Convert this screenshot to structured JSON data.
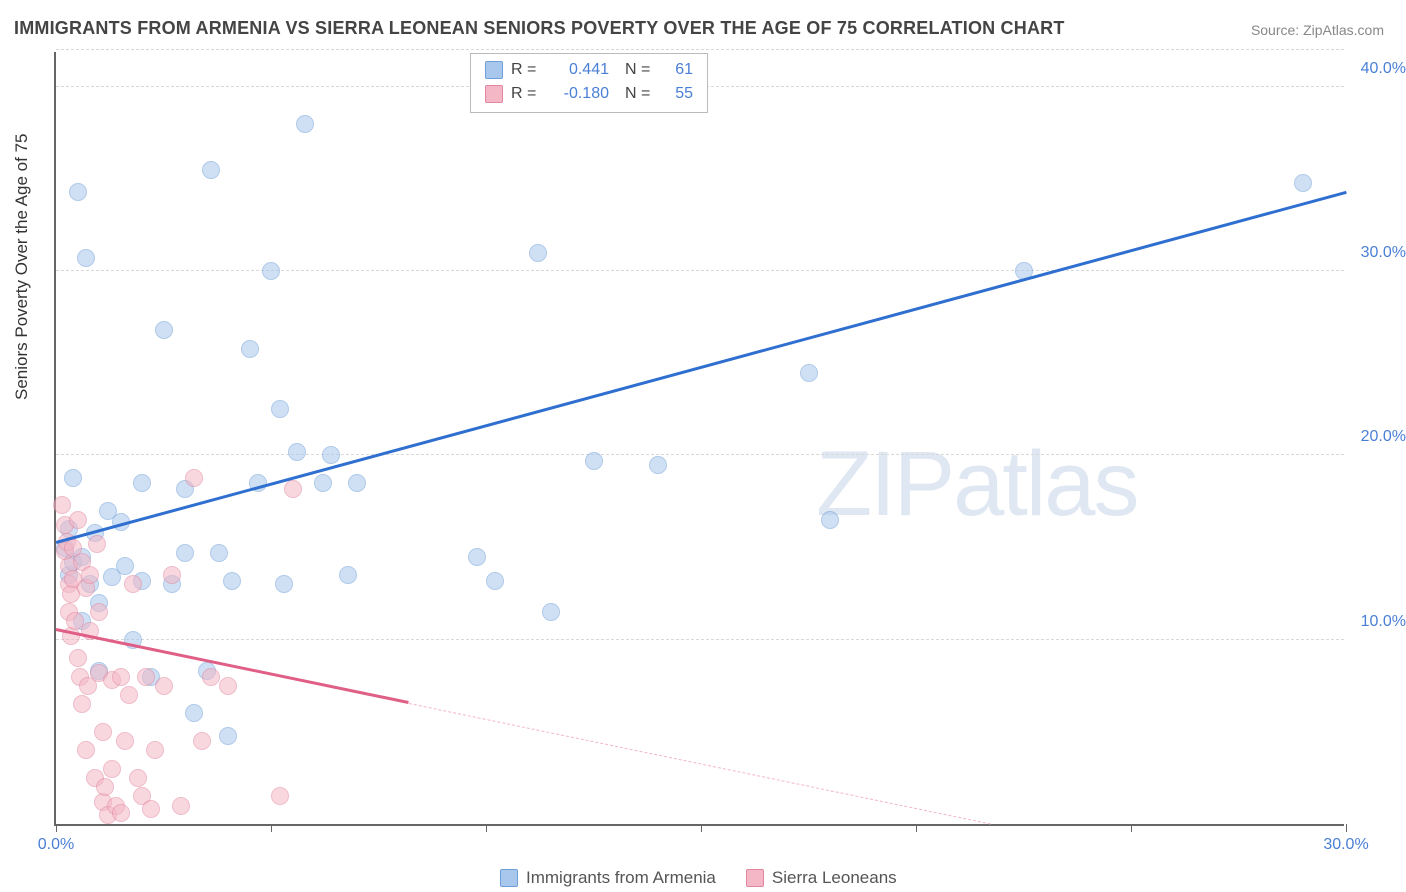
{
  "title": "IMMIGRANTS FROM ARMENIA VS SIERRA LEONEAN SENIORS POVERTY OVER THE AGE OF 75 CORRELATION CHART",
  "source": "Source: ZipAtlas.com",
  "ylabel": "Seniors Poverty Over the Age of 75",
  "watermark": "ZIPatlas",
  "chart": {
    "type": "scatter",
    "xlim": [
      0,
      30
    ],
    "ylim": [
      0,
      42
    ],
    "x_tick_values": [
      0,
      5,
      10,
      15,
      20,
      25,
      30
    ],
    "x_tick_labels": [
      "0.0%",
      "",
      "",
      "",
      "",
      "",
      "30.0%"
    ],
    "y_grid_values": [
      10,
      20,
      30,
      40
    ],
    "y_grid_labels": [
      "10.0%",
      "20.0%",
      "30.0%",
      "40.0%"
    ],
    "background_color": "#ffffff",
    "grid_color": "#d8d8d8",
    "axis_color": "#666666",
    "tick_label_color": "#4a7fd6",
    "marker_radius": 9,
    "marker_opacity": 0.55,
    "series": [
      {
        "name": "Immigrants from Armenia",
        "color_fill": "#a9c7ec",
        "color_stroke": "#6f9fd8",
        "line_color": "#2f6fd0",
        "R": "0.441",
        "N": "61",
        "trend": {
          "x1": 0,
          "y1": 15.2,
          "x2": 30,
          "y2": 34.2,
          "solid_until_x": 30
        },
        "points": [
          [
            0.2,
            15.0
          ],
          [
            0.3,
            16.0
          ],
          [
            0.3,
            13.5
          ],
          [
            0.4,
            14.2
          ],
          [
            0.4,
            18.8
          ],
          [
            0.5,
            34.3
          ],
          [
            0.6,
            11.0
          ],
          [
            0.6,
            14.5
          ],
          [
            0.7,
            30.7
          ],
          [
            0.8,
            13.0
          ],
          [
            0.9,
            15.8
          ],
          [
            1.0,
            12.0
          ],
          [
            1.0,
            8.3
          ],
          [
            1.2,
            17.0
          ],
          [
            1.3,
            13.4
          ],
          [
            1.5,
            16.4
          ],
          [
            1.6,
            14.0
          ],
          [
            1.8,
            10.0
          ],
          [
            2.0,
            18.5
          ],
          [
            2.0,
            13.2
          ],
          [
            2.2,
            8.0
          ],
          [
            2.5,
            26.8
          ],
          [
            2.7,
            13.0
          ],
          [
            3.0,
            18.2
          ],
          [
            3.0,
            14.7
          ],
          [
            3.2,
            6.0
          ],
          [
            3.5,
            8.3
          ],
          [
            3.6,
            35.5
          ],
          [
            3.8,
            14.7
          ],
          [
            4.0,
            4.8
          ],
          [
            4.1,
            13.2
          ],
          [
            4.5,
            25.8
          ],
          [
            4.7,
            18.5
          ],
          [
            5.0,
            30.0
          ],
          [
            5.2,
            22.5
          ],
          [
            5.3,
            13.0
          ],
          [
            5.6,
            20.2
          ],
          [
            5.8,
            38.0
          ],
          [
            6.2,
            18.5
          ],
          [
            6.4,
            20.0
          ],
          [
            6.8,
            13.5
          ],
          [
            7.0,
            18.5
          ],
          [
            9.8,
            14.5
          ],
          [
            10.2,
            13.2
          ],
          [
            11.2,
            31.0
          ],
          [
            11.5,
            11.5
          ],
          [
            12.5,
            19.7
          ],
          [
            14.0,
            19.5
          ],
          [
            17.5,
            24.5
          ],
          [
            18.0,
            16.5
          ],
          [
            22.5,
            30.0
          ],
          [
            29.0,
            34.8
          ]
        ]
      },
      {
        "name": "Sierra Leoneans",
        "color_fill": "#f3b7c6",
        "color_stroke": "#e286a0",
        "line_color": "#e05f87",
        "R": "-0.180",
        "N": "55",
        "trend": {
          "x1": 0,
          "y1": 10.5,
          "x2": 30,
          "y2": -4.0,
          "solid_until_x": 8.2
        },
        "points": [
          [
            0.15,
            17.3
          ],
          [
            0.2,
            16.2
          ],
          [
            0.2,
            14.8
          ],
          [
            0.25,
            15.3
          ],
          [
            0.3,
            13.0
          ],
          [
            0.3,
            14.0
          ],
          [
            0.3,
            11.5
          ],
          [
            0.35,
            12.5
          ],
          [
            0.35,
            10.2
          ],
          [
            0.4,
            13.3
          ],
          [
            0.4,
            15.0
          ],
          [
            0.45,
            11.0
          ],
          [
            0.5,
            16.5
          ],
          [
            0.5,
            9.0
          ],
          [
            0.55,
            8.0
          ],
          [
            0.6,
            14.2
          ],
          [
            0.6,
            6.5
          ],
          [
            0.7,
            12.8
          ],
          [
            0.7,
            4.0
          ],
          [
            0.75,
            7.5
          ],
          [
            0.8,
            10.5
          ],
          [
            0.8,
            13.5
          ],
          [
            0.9,
            2.5
          ],
          [
            0.95,
            15.2
          ],
          [
            1.0,
            8.2
          ],
          [
            1.0,
            11.5
          ],
          [
            1.1,
            5.0
          ],
          [
            1.1,
            1.2
          ],
          [
            1.15,
            2.0
          ],
          [
            1.2,
            0.5
          ],
          [
            1.3,
            7.8
          ],
          [
            1.3,
            3.0
          ],
          [
            1.4,
            1.0
          ],
          [
            1.5,
            8.0
          ],
          [
            1.5,
            0.6
          ],
          [
            1.6,
            4.5
          ],
          [
            1.7,
            7.0
          ],
          [
            1.8,
            13.0
          ],
          [
            1.9,
            2.5
          ],
          [
            2.0,
            1.5
          ],
          [
            2.1,
            8.0
          ],
          [
            2.2,
            0.8
          ],
          [
            2.3,
            4.0
          ],
          [
            2.5,
            7.5
          ],
          [
            2.7,
            13.5
          ],
          [
            2.9,
            1.0
          ],
          [
            3.2,
            18.8
          ],
          [
            3.4,
            4.5
          ],
          [
            3.6,
            8.0
          ],
          [
            4.0,
            7.5
          ],
          [
            5.2,
            1.5
          ],
          [
            5.5,
            18.2
          ]
        ]
      }
    ]
  },
  "legend_bottom": [
    {
      "label": "Immigrants from Armenia",
      "fill": "#a9c7ec",
      "stroke": "#6f9fd8"
    },
    {
      "label": "Sierra Leoneans",
      "fill": "#f3b7c6",
      "stroke": "#e286a0"
    }
  ]
}
